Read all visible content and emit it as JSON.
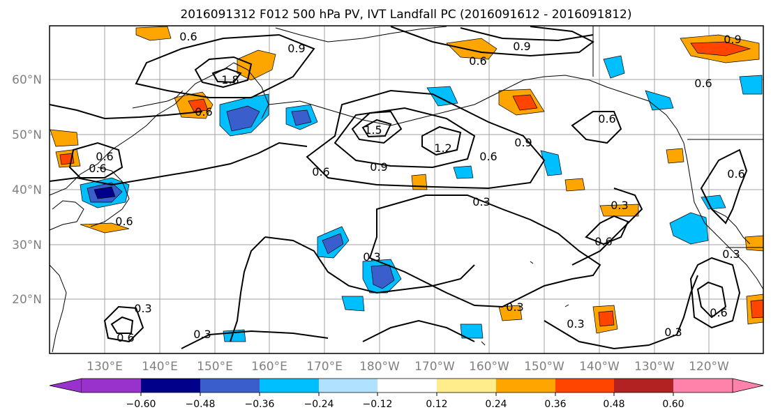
{
  "title": "2016091312 F012 500 hPa PV, IVT Landfall PC (2016091612 - 2016091812)",
  "map": {
    "lon_labels": [
      "130°E",
      "140°E",
      "150°E",
      "160°E",
      "170°E",
      "180°W",
      "170°W",
      "160°W",
      "150°W",
      "140°W",
      "130°W",
      "120°W"
    ],
    "lat_labels": [
      "60°N",
      "50°N",
      "40°N",
      "30°N",
      "20°N"
    ],
    "contour_labels": [
      "0.6",
      "0.9",
      "0.6",
      "1.8",
      "0.6",
      "0.6",
      "0.6",
      "1.5",
      "1.2",
      "0.9",
      "0.6",
      "0.9",
      "0.6",
      "0.6",
      "0.3",
      "0.3",
      "0.6",
      "0.3",
      "0.3",
      "0.3",
      "0.3",
      "0.6",
      "0.3",
      "0.9",
      "0.6",
      "0.6",
      "0.3",
      "0.6",
      "0.3",
      "0.9",
      "0.6"
    ]
  },
  "colorbar": {
    "tick_labels": [
      "−0.60",
      "−0.48",
      "−0.36",
      "−0.24",
      "−0.12",
      "0.12",
      "0.24",
      "0.36",
      "0.48",
      "0.60"
    ],
    "colors": [
      "#9932CC",
      "#00008B",
      "#3A5FCD",
      "#00BFFF",
      "#B0E2FF",
      "#FFFFFF",
      "#FFEC8B",
      "#FFA500",
      "#FF4500",
      "#B22222",
      "#FF82AB"
    ]
  },
  "colors": {
    "contour": "#000000",
    "grid": "#A0A0A0",
    "coast": "#000000"
  }
}
